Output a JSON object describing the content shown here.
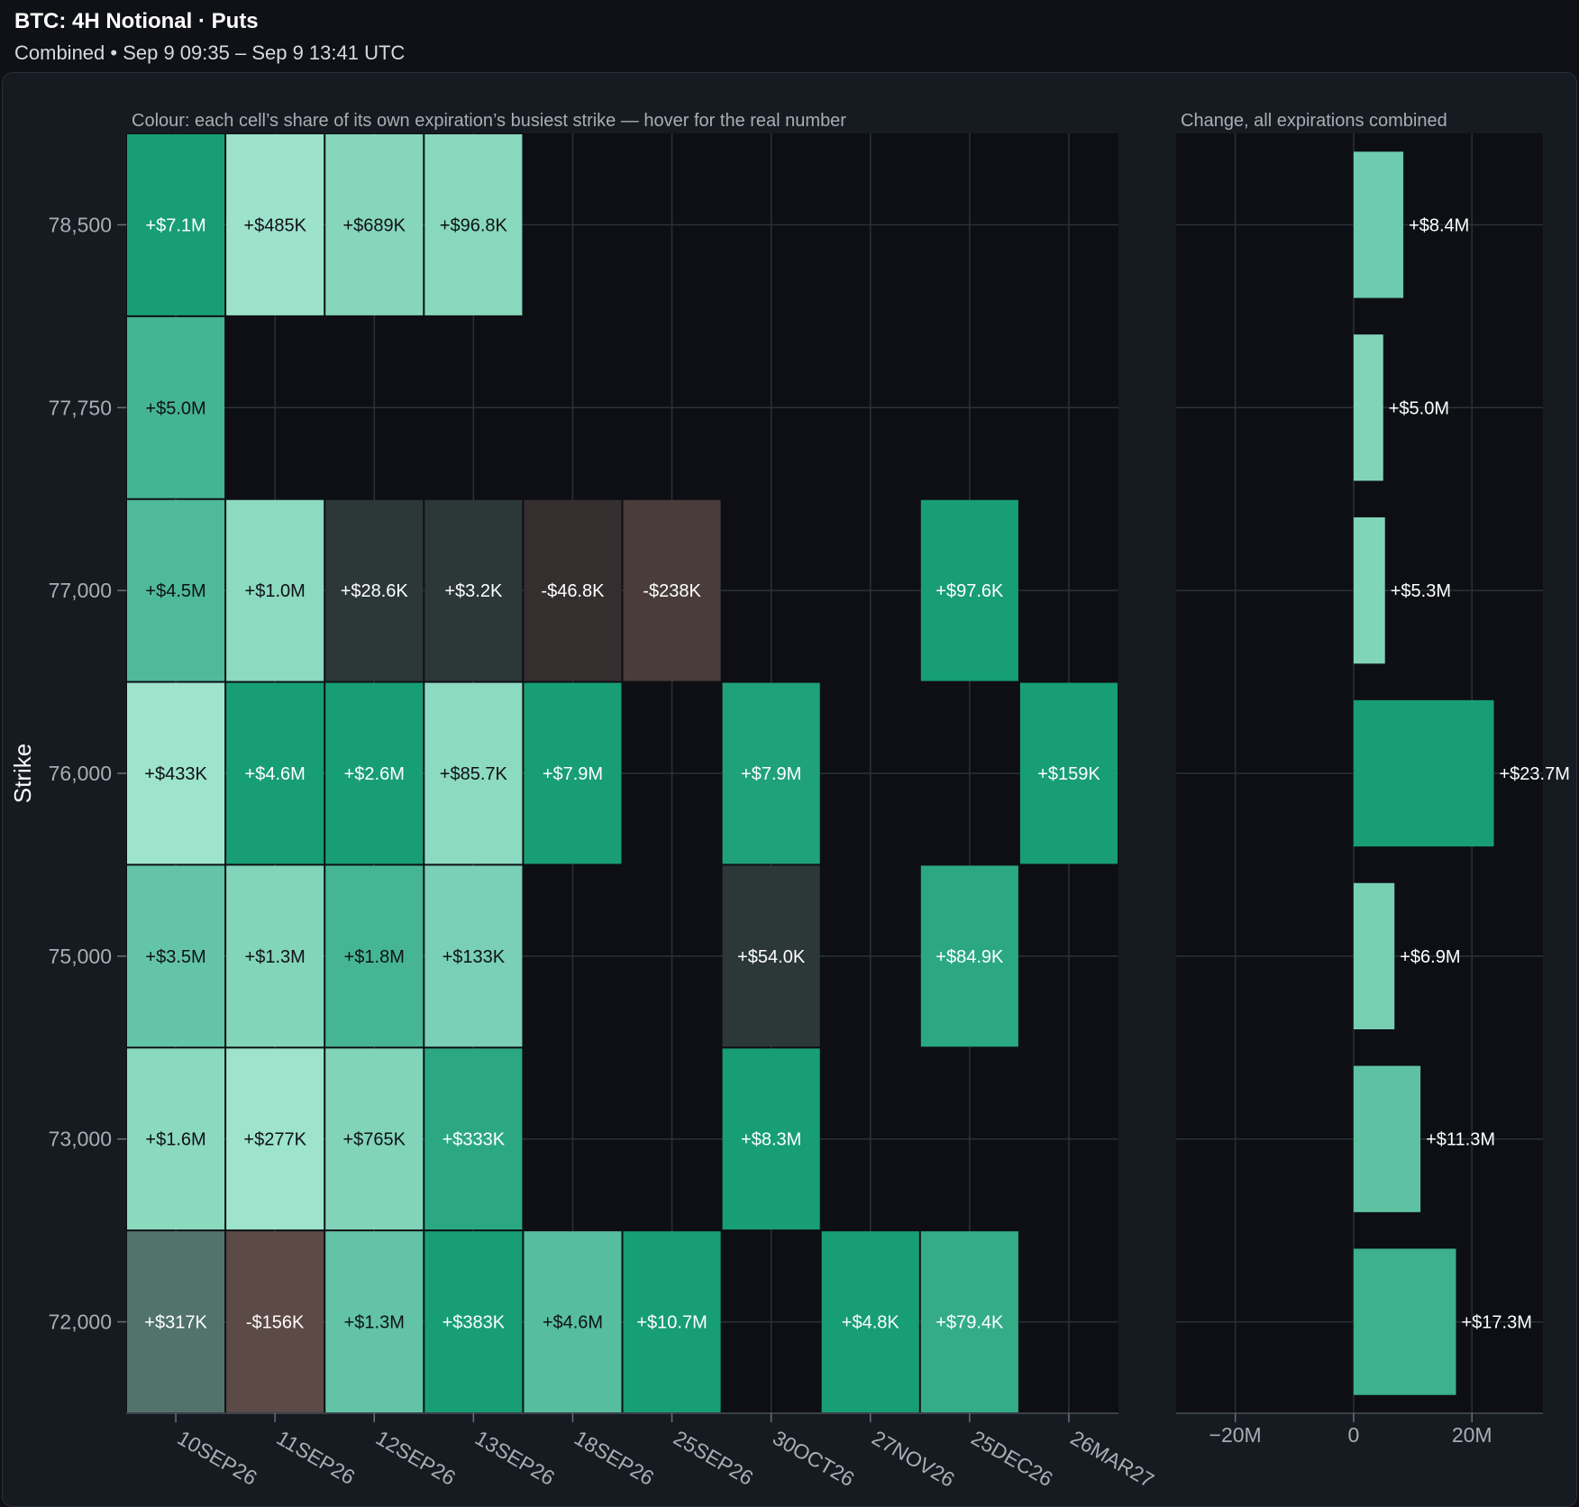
{
  "header": {
    "title": "BTC: 4H Notional · Puts",
    "subtitle": "Combined • Sep 9 09:35 – Sep 9 13:41 UTC"
  },
  "chart_data": [
    {
      "type": "heatmap",
      "title": "Colour: each cell’s share of its own expiration’s busiest strike — hover for the real number",
      "ylabel": "Strike",
      "xlabel": "",
      "x_categories": [
        "10SEP26",
        "11SEP26",
        "12SEP26",
        "13SEP26",
        "18SEP26",
        "25SEP26",
        "30OCT26",
        "27NOV26",
        "25DEC26",
        "26MAR27"
      ],
      "y_categories": [
        "78,500",
        "77,750",
        "77,000",
        "76,000",
        "75,000",
        "73,000",
        "72,000"
      ],
      "cells": [
        {
          "strike": "78,500",
          "expiry": "10SEP26",
          "label": "+$7.1M",
          "share": 1.0
        },
        {
          "strike": "78,500",
          "expiry": "11SEP26",
          "label": "+$485K",
          "share": 0.11
        },
        {
          "strike": "78,500",
          "expiry": "12SEP26",
          "label": "+$689K",
          "share": 0.27
        },
        {
          "strike": "78,500",
          "expiry": "13SEP26",
          "label": "+$96.8K",
          "share": 0.25
        },
        {
          "strike": "77,750",
          "expiry": "10SEP26",
          "label": "+$5.0M",
          "share": 0.7
        },
        {
          "strike": "77,000",
          "expiry": "10SEP26",
          "label": "+$4.5M",
          "share": 0.63
        },
        {
          "strike": "77,000",
          "expiry": "11SEP26",
          "label": "+$1.0M",
          "share": 0.22
        },
        {
          "strike": "77,000",
          "expiry": "12SEP26",
          "label": "+$28.6K",
          "share": 0.01
        },
        {
          "strike": "77,000",
          "expiry": "13SEP26",
          "label": "+$3.2K",
          "share": 0.01
        },
        {
          "strike": "77,000",
          "expiry": "18SEP26",
          "label": "-$46.8K",
          "share": -0.01
        },
        {
          "strike": "77,000",
          "expiry": "25SEP26",
          "label": "-$238K",
          "share": -0.02
        },
        {
          "strike": "77,000",
          "expiry": "25DEC26",
          "label": "+$97.6K",
          "share": 1.0
        },
        {
          "strike": "76,000",
          "expiry": "10SEP26",
          "label": "+$433K",
          "share": 0.06
        },
        {
          "strike": "76,000",
          "expiry": "11SEP26",
          "label": "+$4.6M",
          "share": 1.0
        },
        {
          "strike": "76,000",
          "expiry": "12SEP26",
          "label": "+$2.6M",
          "share": 1.0
        },
        {
          "strike": "76,000",
          "expiry": "13SEP26",
          "label": "+$85.7K",
          "share": 0.22
        },
        {
          "strike": "76,000",
          "expiry": "18SEP26",
          "label": "+$7.9M",
          "share": 1.0
        },
        {
          "strike": "76,000",
          "expiry": "30OCT26",
          "label": "+$7.9M",
          "share": 0.95
        },
        {
          "strike": "76,000",
          "expiry": "26MAR27",
          "label": "+$159K",
          "share": 1.0
        },
        {
          "strike": "75,000",
          "expiry": "10SEP26",
          "label": "+$3.5M",
          "share": 0.49
        },
        {
          "strike": "75,000",
          "expiry": "11SEP26",
          "label": "+$1.3M",
          "share": 0.28
        },
        {
          "strike": "75,000",
          "expiry": "12SEP26",
          "label": "+$1.8M",
          "share": 0.69
        },
        {
          "strike": "75,000",
          "expiry": "13SEP26",
          "label": "+$133K",
          "share": 0.35
        },
        {
          "strike": "75,000",
          "expiry": "30OCT26",
          "label": "+$54.0K",
          "share": 0.01
        },
        {
          "strike": "75,000",
          "expiry": "25DEC26",
          "label": "+$84.9K",
          "share": 0.87
        },
        {
          "strike": "73,000",
          "expiry": "10SEP26",
          "label": "+$1.6M",
          "share": 0.23
        },
        {
          "strike": "73,000",
          "expiry": "11SEP26",
          "label": "+$277K",
          "share": 0.06
        },
        {
          "strike": "73,000",
          "expiry": "12SEP26",
          "label": "+$765K",
          "share": 0.29
        },
        {
          "strike": "73,000",
          "expiry": "13SEP26",
          "label": "+$333K",
          "share": 0.87
        },
        {
          "strike": "73,000",
          "expiry": "30OCT26",
          "label": "+$8.3M",
          "share": 1.0
        },
        {
          "strike": "72,000",
          "expiry": "10SEP26",
          "label": "+$317K",
          "share": 0.04
        },
        {
          "strike": "72,000",
          "expiry": "11SEP26",
          "label": "-$156K",
          "share": -0.03
        },
        {
          "strike": "72,000",
          "expiry": "12SEP26",
          "label": "+$1.3M",
          "share": 0.5
        },
        {
          "strike": "72,000",
          "expiry": "13SEP26",
          "label": "+$383K",
          "share": 1.0
        },
        {
          "strike": "72,000",
          "expiry": "18SEP26",
          "label": "+$4.6M",
          "share": 0.58
        },
        {
          "strike": "72,000",
          "expiry": "25SEP26",
          "label": "+$10.7M",
          "share": 1.0
        },
        {
          "strike": "72,000",
          "expiry": "27NOV26",
          "label": "+$4.8K",
          "share": 1.0
        },
        {
          "strike": "72,000",
          "expiry": "25DEC26",
          "label": "+$79.4K",
          "share": 0.81
        }
      ]
    },
    {
      "type": "bar",
      "orientation": "horizontal",
      "title": "Change, all expirations combined",
      "categories": [
        "78,500",
        "77,750",
        "77,000",
        "76,000",
        "75,000",
        "73,000",
        "72,000"
      ],
      "values": [
        8.4,
        5.0,
        5.3,
        23.7,
        6.9,
        11.3,
        17.3
      ],
      "value_unit": "M",
      "labels": [
        "+$8.4M",
        "+$5.0M",
        "+$5.3M",
        "+$23.7M",
        "+$6.9M",
        "+$11.3M",
        "+$17.3M"
      ],
      "xlim": [
        -30,
        32
      ],
      "x_ticks": [
        -20,
        0,
        20
      ],
      "x_tick_labels": [
        "−20M",
        "0",
        "20M"
      ]
    }
  ]
}
